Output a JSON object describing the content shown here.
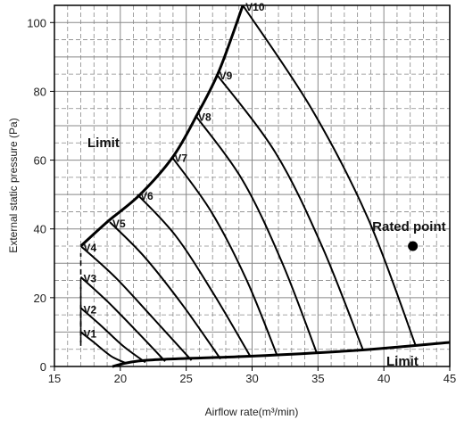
{
  "chart_data": {
    "type": "line",
    "title": "",
    "xlabel": "Airflow rate(m³/min)",
    "ylabel": "External static pressure (Pa)",
    "xlim": [
      15,
      45
    ],
    "ylim": [
      0,
      105
    ],
    "x_ticks": [
      "15",
      "20",
      "25",
      "30",
      "35",
      "40",
      "45"
    ],
    "y_ticks": [
      "0",
      "20",
      "40",
      "60",
      "80",
      "100"
    ],
    "grid": true,
    "series": [
      {
        "name": "V1",
        "points": [
          [
            17.0,
            10.0
          ],
          [
            18.0,
            7.0
          ],
          [
            19.3,
            3.0
          ],
          [
            20.4,
            1.0
          ]
        ]
      },
      {
        "name": "V2",
        "points": [
          [
            17.0,
            17.0
          ],
          [
            18.5,
            12.0
          ],
          [
            20.2,
            6.0
          ],
          [
            21.9,
            1.2
          ]
        ]
      },
      {
        "name": "V3",
        "points": [
          [
            17.0,
            26.0
          ],
          [
            19.0,
            19.0
          ],
          [
            21.3,
            10.0
          ],
          [
            23.4,
            1.5
          ]
        ]
      },
      {
        "name": "V4",
        "points": [
          [
            17.0,
            35.0
          ],
          [
            19.6,
            26.0
          ],
          [
            22.5,
            14.0
          ],
          [
            25.4,
            1.8
          ]
        ]
      },
      {
        "name": "V5",
        "points": [
          [
            19.2,
            42.0
          ],
          [
            21.8,
            32.0
          ],
          [
            24.7,
            18.0
          ],
          [
            27.6,
            2.2
          ]
        ]
      },
      {
        "name": "V6",
        "points": [
          [
            21.3,
            50.0
          ],
          [
            24.2,
            38.0
          ],
          [
            27.1,
            21.0
          ],
          [
            29.9,
            2.7
          ]
        ]
      },
      {
        "name": "V7",
        "points": [
          [
            23.9,
            61.0
          ],
          [
            26.9,
            45.0
          ],
          [
            29.6,
            25.0
          ],
          [
            31.9,
            3.2
          ]
        ]
      },
      {
        "name": "V8",
        "points": [
          [
            25.7,
            73.0
          ],
          [
            29.3,
            54.0
          ],
          [
            32.3,
            30.0
          ],
          [
            34.9,
            4.0
          ]
        ]
      },
      {
        "name": "V9",
        "points": [
          [
            27.3,
            85.0
          ],
          [
            31.8,
            62.0
          ],
          [
            35.3,
            35.0
          ],
          [
            38.4,
            5.0
          ]
        ]
      },
      {
        "name": "V10",
        "points": [
          [
            29.3,
            105.0
          ],
          [
            34.5,
            75.0
          ],
          [
            38.8,
            43.0
          ],
          [
            42.4,
            6.2
          ]
        ]
      }
    ],
    "limit_upper": [
      [
        17.0,
        35.0
      ],
      [
        19.0,
        42.0
      ],
      [
        21.5,
        50.0
      ],
      [
        24.0,
        61.0
      ],
      [
        25.8,
        73.0
      ],
      [
        27.5,
        86.0
      ],
      [
        29.3,
        105.0
      ]
    ],
    "limit_lower": [
      [
        19.4,
        0.0
      ],
      [
        22.0,
        1.8
      ],
      [
        30.0,
        3.0
      ],
      [
        38.0,
        4.7
      ],
      [
        45.0,
        7.0
      ]
    ],
    "limit_label_upper": "Limit",
    "limit_label_lower": "Limit",
    "rated_point": {
      "label": "Rated point",
      "x": 42.2,
      "y": 35.0
    },
    "colors": {
      "curve": "#000000",
      "grid_major": "#888888",
      "grid_minor": "#888888"
    }
  }
}
